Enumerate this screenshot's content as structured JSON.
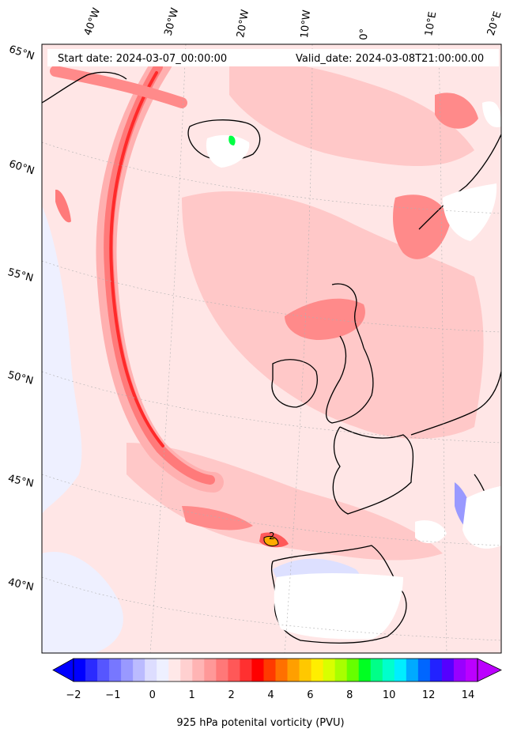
{
  "header": {
    "start_date": "Start date: 2024-03-07_00:00:00",
    "valid_date": "Valid_date: 2024-03-08T21:00:00.00"
  },
  "lon_labels": [
    "40°W",
    "30°W",
    "20°W",
    "10°W",
    "0°",
    "10°E",
    "20°E"
  ],
  "lat_labels": [
    "65°N",
    "60°N",
    "55°N",
    "50°N",
    "45°N",
    "40°N"
  ],
  "contour_label": "2",
  "colorbar": {
    "title": "925 hPa potenital vorticity (PVU)",
    "ticks": [
      "−2",
      "−1",
      "0",
      "1",
      "2",
      "4",
      "6",
      "8",
      "10",
      "12",
      "14"
    ],
    "colors": [
      "#0000ff",
      "#2b2bff",
      "#5656ff",
      "#7777ff",
      "#9999ff",
      "#bbbbff",
      "#ddddff",
      "#eef0ff",
      "#ffe8e8",
      "#ffd0d0",
      "#ffb4b4",
      "#ff9898",
      "#ff7878",
      "#ff5858",
      "#ff3030",
      "#ff0000",
      "#ff3a00",
      "#ff7000",
      "#ff9f00",
      "#ffc800",
      "#ffee00",
      "#d8ff00",
      "#a8ff00",
      "#66ff00",
      "#00ff22",
      "#00ff88",
      "#00ffcc",
      "#00eeff",
      "#00aaff",
      "#0066ff",
      "#2222ff",
      "#5500ff",
      "#9900ff",
      "#bb00ff"
    ]
  },
  "colors": {
    "background": "#ffe6e6",
    "pv_light": "#ffc8c8",
    "pv_medium": "#ff9a9a",
    "pv_strong": "#ff5a5a",
    "pv_peak": "#ff1a1a",
    "pv_negative": "#eef0ff",
    "masked": "#ffffff",
    "coastline": "#000000"
  }
}
